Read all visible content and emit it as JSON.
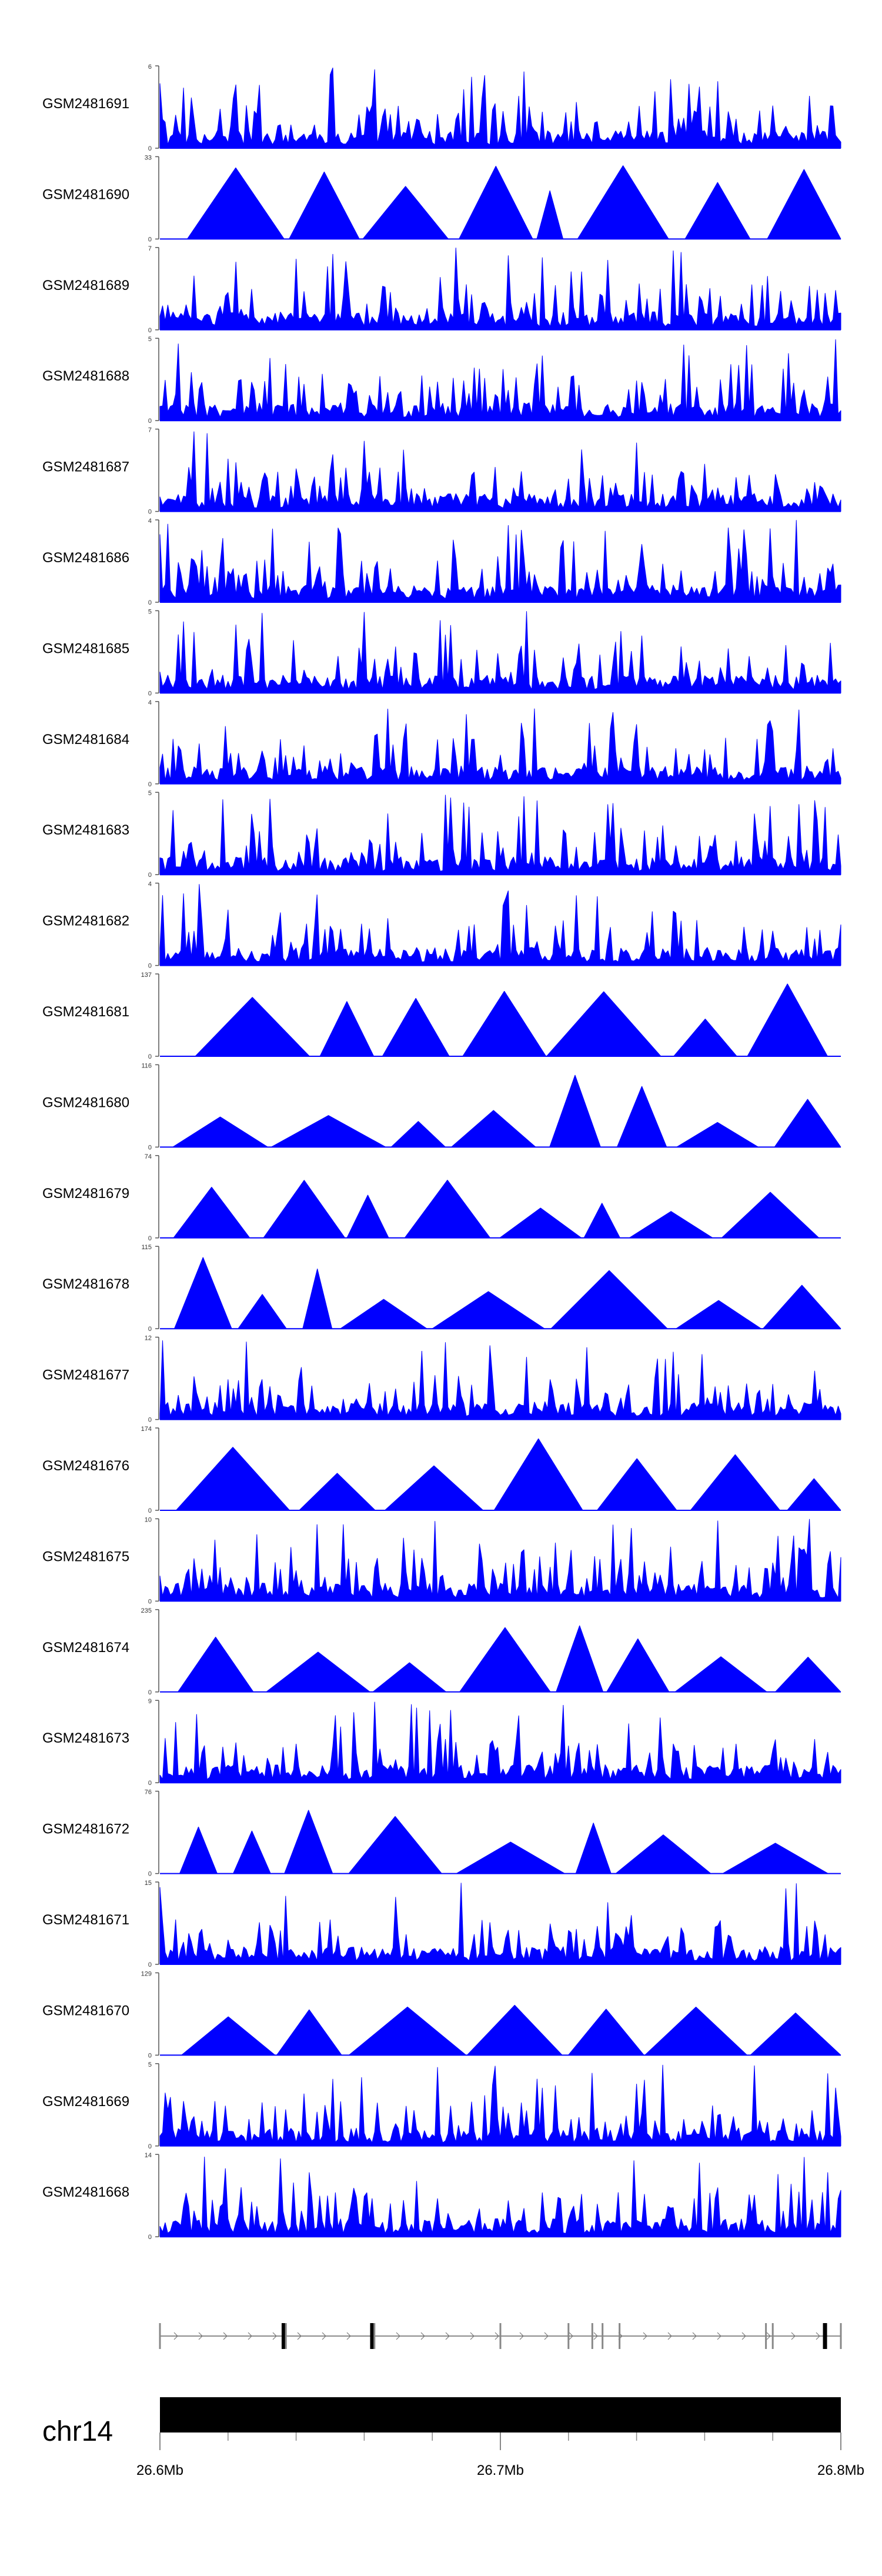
{
  "chart_data": {
    "type": "area",
    "x_unit": "Mb",
    "xlim": [
      26.6,
      26.8
    ],
    "series_color": "#0000ff",
    "tracks": [
      {
        "name": "GSM2481691",
        "ymax": "6"
      },
      {
        "name": "GSM2481690",
        "ymax": "33"
      },
      {
        "name": "GSM2481689",
        "ymax": "7"
      },
      {
        "name": "GSM2481688",
        "ymax": "5"
      },
      {
        "name": "GSM2481687",
        "ymax": "7"
      },
      {
        "name": "GSM2481686",
        "ymax": "4"
      },
      {
        "name": "GSM2481685",
        "ymax": "5"
      },
      {
        "name": "GSM2481684",
        "ymax": "4"
      },
      {
        "name": "GSM2481683",
        "ymax": "5"
      },
      {
        "name": "GSM2481682",
        "ymax": "4"
      },
      {
        "name": "GSM2481681",
        "ymax": "137"
      },
      {
        "name": "GSM2481680",
        "ymax": "116"
      },
      {
        "name": "GSM2481679",
        "ymax": "74"
      },
      {
        "name": "GSM2481678",
        "ymax": "115"
      },
      {
        "name": "GSM2481677",
        "ymax": "12"
      },
      {
        "name": "GSM2481676",
        "ymax": "174"
      },
      {
        "name": "GSM2481675",
        "ymax": "10"
      },
      {
        "name": "GSM2481674",
        "ymax": "235"
      },
      {
        "name": "GSM2481673",
        "ymax": "9"
      },
      {
        "name": "GSM2481672",
        "ymax": "76"
      },
      {
        "name": "GSM2481671",
        "ymax": "15"
      },
      {
        "name": "GSM2481670",
        "ymax": "129"
      },
      {
        "name": "GSM2481669",
        "ymax": "5"
      },
      {
        "name": "GSM2481668",
        "ymax": "14"
      }
    ],
    "ymin_label": "0",
    "chromosome": "chr14",
    "axis_ticks": [
      "26.6Mb",
      "26.7Mb",
      "26.8Mb"
    ],
    "axis_tick_values": [
      26.6,
      26.7,
      26.8
    ],
    "minor_tick_values": [
      26.62,
      26.64,
      26.66,
      26.68,
      26.72,
      26.74,
      26.76,
      26.78
    ],
    "gene_exon_positions": [
      26.6,
      26.636,
      26.637,
      26.662,
      26.663,
      26.7,
      26.72,
      26.727,
      26.73,
      26.735,
      26.778,
      26.78,
      26.795,
      26.8
    ]
  }
}
